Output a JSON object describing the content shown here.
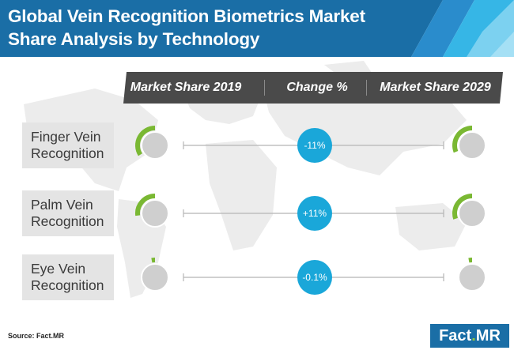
{
  "title": {
    "line1": "Global Vein Recognition Biometrics Market",
    "line2": "Share Analysis by Technology"
  },
  "columns": [
    "Market Share 2019",
    "Change %",
    "Market Share 2029"
  ],
  "colors": {
    "header_dark": "#1a6ea6",
    "header_light": "#36b6e6",
    "accent_green": "#7ab833",
    "pill_blue": "#1aa7d9",
    "label_bg": "#e4e4e4",
    "column_bar": "#4a4a4a"
  },
  "chart_data": {
    "type": "table",
    "rows": [
      {
        "technology_line1": "Finger Vein",
        "technology_line2": "Recognition",
        "share_2019_fraction": 0.34,
        "change": "-11%",
        "share_2029_fraction": 0.31
      },
      {
        "technology_line1": "Palm Vein",
        "technology_line2": "Recognition",
        "share_2019_fraction": 0.27,
        "change": "+11%",
        "share_2029_fraction": 0.3
      },
      {
        "technology_line1": "Eye Vein",
        "technology_line2": "Recognition",
        "share_2019_fraction": 0.03,
        "change": "-0.1%",
        "share_2029_fraction": 0.03
      }
    ]
  },
  "footer": {
    "source": "Source: Fact.MR",
    "logo_part1": "Fact",
    "logo_dot": ".",
    "logo_part2": "MR"
  }
}
